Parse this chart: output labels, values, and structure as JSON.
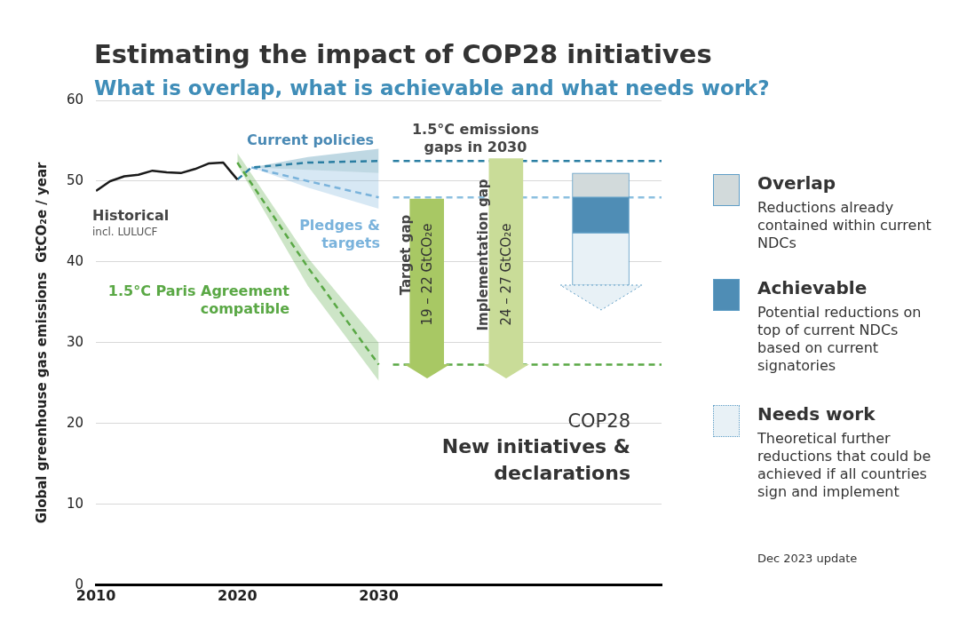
{
  "chart_data": {
    "type": "line",
    "title": "Estimating the impact of COP28 initiatives",
    "subtitle": "What is overlap, what is achievable and what needs work?",
    "ylabel": "Global greenhouse gas emissions  GtCO₂e / year",
    "xlim": [
      2010,
      2050
    ],
    "xticks": [
      2010,
      2020,
      2030
    ],
    "ylim": [
      0,
      60
    ],
    "yticks": [
      0,
      10,
      20,
      30,
      40,
      50,
      60
    ],
    "grid": "y",
    "legend": "right",
    "marker": "none",
    "series": [
      {
        "name": "Historical",
        "color": "#1a1a1a",
        "line_style": "solid",
        "x": [
          2010,
          2011,
          2012,
          2013,
          2014,
          2015,
          2016,
          2017,
          2018,
          2019,
          2020
        ],
        "values": [
          48.8,
          50.0,
          50.6,
          50.8,
          51.3,
          51.1,
          51.0,
          51.5,
          52.2,
          52.3,
          50.2
        ]
      },
      {
        "name": "Current policies",
        "color": "#2b7fa3",
        "line_style": "dashed",
        "x": [
          2020,
          2021,
          2025,
          2030
        ],
        "values": [
          50.2,
          51.7,
          52.3,
          52.5
        ],
        "lower": [
          50.2,
          51.7,
          51.4,
          51.0
        ],
        "upper": [
          50.2,
          51.7,
          53.0,
          54.0
        ]
      },
      {
        "name": "Pledges & targets",
        "color": "#7ab3dc",
        "line_style": "dashed",
        "x": [
          2021,
          2025,
          2030
        ],
        "values": [
          51.7,
          50.0,
          48.0
        ],
        "lower": [
          51.7,
          49.2,
          46.6
        ],
        "upper": [
          51.7,
          51.4,
          51.0
        ]
      },
      {
        "name": "1.5°C Paris Agreement compatible",
        "color": "#5aa845",
        "line_style": "dashed",
        "x": [
          2020,
          2025,
          2030
        ],
        "values": [
          52.3,
          39.3,
          27.3
        ],
        "lower": [
          52.0,
          37.0,
          25.3
        ],
        "upper": [
          53.5,
          40.5,
          30.0
        ]
      },
      {
        "name": "Target gap",
        "type": "bar",
        "color": "#a8c864",
        "x": [
          2033.4
        ],
        "base": [
          27.3
        ],
        "values": [
          20.5
        ]
      },
      {
        "name": "Implementation gap",
        "type": "bar",
        "color": "#c9dc98",
        "x": [
          2039.0
        ],
        "base": [
          27.3
        ],
        "values": [
          25.5
        ]
      },
      {
        "name": "Overlap",
        "type": "bar",
        "color": "#d2dadb",
        "x": [
          2045.7
        ],
        "base": [
          48.0
        ],
        "values": [
          3.0
        ]
      },
      {
        "name": "Achievable",
        "type": "bar",
        "color": "#4f8db5",
        "x": [
          2045.7
        ],
        "base": [
          43.6
        ],
        "values": [
          4.4
        ]
      },
      {
        "name": "Needs work",
        "type": "bar",
        "color": "#e8f1f6",
        "x": [
          2045.7
        ],
        "base": [
          37.1
        ],
        "values": [
          6.5
        ]
      }
    ],
    "ref_lines": [
      {
        "axis": "y",
        "value": 52.5,
        "color": "#2b7fa3",
        "line_style": "dashed"
      },
      {
        "axis": "y",
        "value": 48.0,
        "color": "#8cc0e0",
        "line_style": "dashed"
      },
      {
        "axis": "y",
        "value": 27.3,
        "color": "#5aa845",
        "line_style": "dashed"
      }
    ],
    "annotations": [
      "incl. LULUCF",
      "1.5°C emissions gaps in 2030",
      "COP28",
      "New initiatives & declarations",
      "Reductions already contained within current NDCs",
      "Potential reductions on top of current NDCs based on current signatories",
      "Theoretical further reductions that could be achieved if all countries sign and implement",
      "Dec 2023 update",
      "19 – 22 GtCO₂e",
      "24 – 27 GtCO₂e"
    ]
  }
}
